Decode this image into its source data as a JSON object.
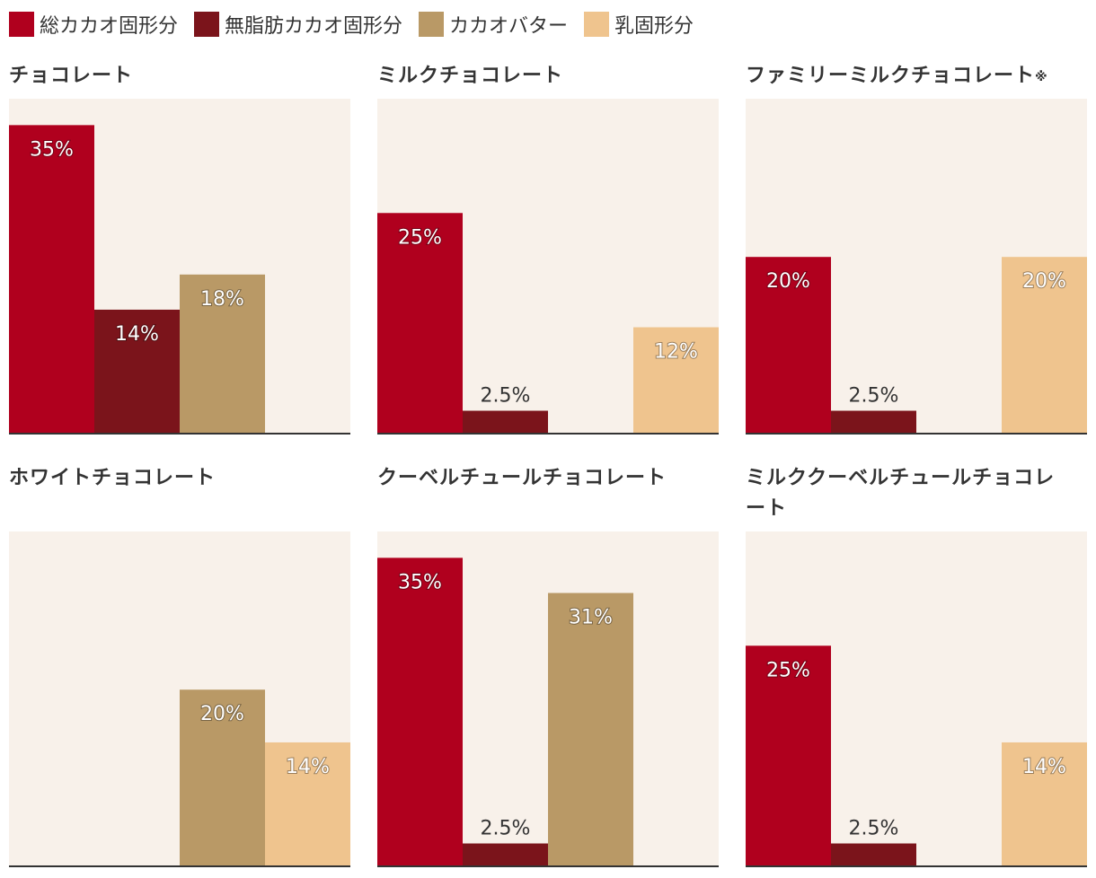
{
  "legend": [
    {
      "label": "総カカオ固形分",
      "color": "#b0001e"
    },
    {
      "label": "無脂肪カカオ固形分",
      "color": "#7b141b"
    },
    {
      "label": "カカオバター",
      "color": "#b99966"
    },
    {
      "label": "乳固形分",
      "color": "#efc48e"
    }
  ],
  "colors": {
    "panel_background": "#f8f1ea",
    "baseline": "#333333",
    "value_label": "#ffffff"
  },
  "chart_data": [
    {
      "type": "bar",
      "title": "チョコレート",
      "categories": [
        "総カカオ固形分",
        "無脂肪カカオ固形分",
        "カカオバター",
        "乳固形分"
      ],
      "values": [
        35,
        14,
        18,
        null
      ],
      "labels": [
        "35%",
        "14%",
        "18%",
        ""
      ],
      "ylim": [
        0,
        38
      ],
      "unit": "%",
      "grid": false
    },
    {
      "type": "bar",
      "title": "ミルクチョコレート",
      "categories": [
        "総カカオ固形分",
        "無脂肪カカオ固形分",
        "カカオバター",
        "乳固形分"
      ],
      "values": [
        25,
        2.5,
        null,
        12
      ],
      "labels": [
        "25%",
        "2.5%",
        "",
        "12%"
      ],
      "ylim": [
        0,
        38
      ],
      "unit": "%",
      "grid": false
    },
    {
      "type": "bar",
      "title": "ファミリーミルクチョコレート",
      "title_mark": "※",
      "categories": [
        "総カカオ固形分",
        "無脂肪カカオ固形分",
        "カカオバター",
        "乳固形分"
      ],
      "values": [
        20,
        2.5,
        null,
        20
      ],
      "labels": [
        "20%",
        "2.5%",
        "",
        "20%"
      ],
      "ylim": [
        0,
        38
      ],
      "unit": "%",
      "grid": false
    },
    {
      "type": "bar",
      "title": "ホワイトチョコレート",
      "categories": [
        "総カカオ固形分",
        "無脂肪カカオ固形分",
        "カカオバター",
        "乳固形分"
      ],
      "values": [
        null,
        null,
        20,
        14
      ],
      "labels": [
        "",
        "",
        "20%",
        "14%"
      ],
      "ylim": [
        0,
        38
      ],
      "unit": "%",
      "grid": false
    },
    {
      "type": "bar",
      "title": "クーベルチュールチョコレート",
      "categories": [
        "総カカオ固形分",
        "無脂肪カカオ固形分",
        "カカオバター",
        "乳固形分"
      ],
      "values": [
        35,
        2.5,
        31,
        null
      ],
      "labels": [
        "35%",
        "2.5%",
        "31%",
        ""
      ],
      "ylim": [
        0,
        38
      ],
      "unit": "%",
      "grid": false
    },
    {
      "type": "bar",
      "title": "ミルククーベルチュールチョコレート",
      "categories": [
        "総カカオ固形分",
        "無脂肪カカオ固形分",
        "カカオバター",
        "乳固形分"
      ],
      "values": [
        25,
        2.5,
        null,
        14
      ],
      "labels": [
        "25%",
        "2.5%",
        "",
        "14%"
      ],
      "ylim": [
        0,
        38
      ],
      "unit": "%",
      "grid": false
    }
  ]
}
